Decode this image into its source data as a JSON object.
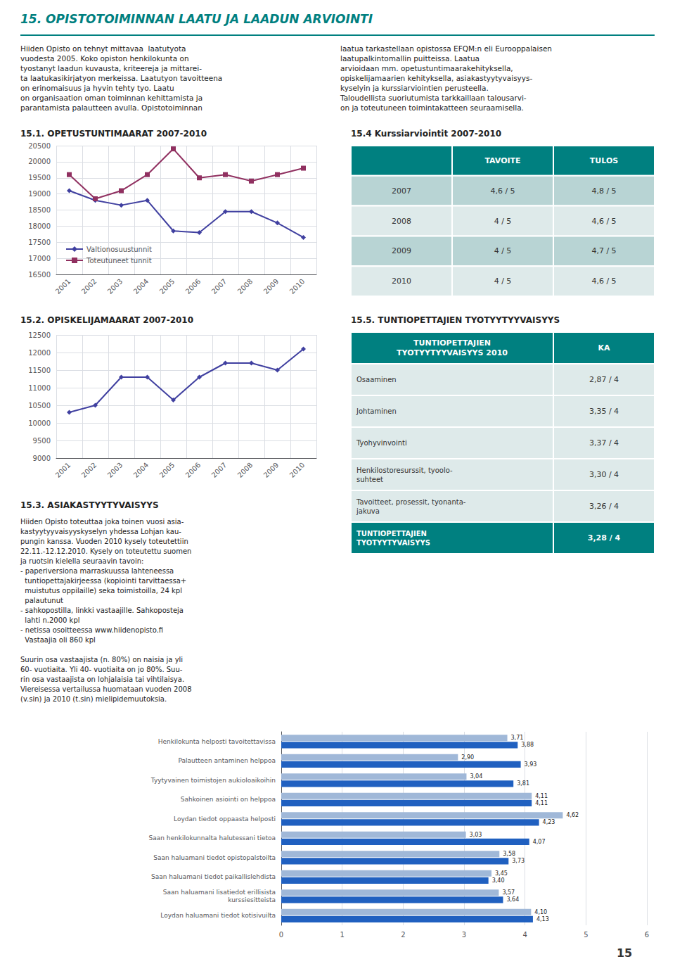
{
  "title": "15. OPISTOTOIMINNAN LAATU JA LAADUN ARVIOINTI",
  "color": "#008080",
  "annotations": [
    "Hiiden Opisto on tehnyt mittavaa  laatutyota\nvuodesta 2005. Koko opiston henkilokunta on\ntyostanyt laadun kuvausta, kriteereja ja mittarei-\nta laatukasikirjatyon merkeissa. Laatutyon tavoitteena\non erinomaisuus ja hyvin tehty tyo. Laatu\non organisaation oman toiminnan kehittamista ja\nparantamista palautteen avulla. Opistotoiminnan",
    "laatua tarkastellaan opistossa EFQM:n eli Eurooppalaisen\nlaatupalkintomallin puitteissa. Laatua\narvioidaan mm. opetustuntimaarakehityksella,\nopiskelijamaarien kehityksella, asiakastyytyvaisyys-\nkyselyin ja kurssiarviointien perusteella.\nTaloudellista suoriutumista tarkkaillaan talousarvi-\non ja toteutuneen toimintakatteen seuraamisella.",
    "15"
  ],
  "chart_data": [
    {
      "type": "line",
      "title": "15.1. OPETUSTUNTIMAARAT 2007-2010",
      "categories": [
        "2001",
        "2002",
        "2003",
        "2004",
        "2005",
        "2006",
        "2007",
        "2008",
        "2009",
        "2010"
      ],
      "series": [
        {
          "name": "Valtionosuustunnit",
          "color": "#4040a0",
          "marker": "diamond",
          "values": [
            19100,
            18800,
            18650,
            18800,
            17850,
            17800,
            18450,
            18450,
            18100,
            17650
          ]
        },
        {
          "name": "Toteutuneet tunnit",
          "color": "#903060",
          "marker": "square",
          "values": [
            19600,
            18850,
            19100,
            19600,
            20400,
            19500,
            19600,
            19400,
            19600,
            19800
          ]
        }
      ],
      "ylim": [
        16500,
        20500
      ],
      "yticks": [
        16500,
        17000,
        17500,
        18000,
        18500,
        19000,
        19500,
        20000,
        20500
      ],
      "grid": true,
      "legend": "lower left"
    },
    {
      "type": "table",
      "title": "15.4 Kurssiarviointit 2007-2010",
      "columns": [
        "TAVOITE",
        "TULOS"
      ],
      "rows": [
        [
          "2007",
          "4,6 / 5",
          "4,8 / 5"
        ],
        [
          "2008",
          "4 / 5",
          "4,6 / 5"
        ],
        [
          "2009",
          "4 / 5",
          "4,7 / 5"
        ],
        [
          "2010",
          "4 / 5",
          "4,6 / 5"
        ]
      ],
      "color": "#008080",
      "colors": [
        "#b8d4d4",
        "#deeaea",
        "#b8d4d4",
        "#deeaea"
      ]
    },
    {
      "type": "line",
      "title": "15.2. OPISKELIJAMAARAT 2007-2010",
      "categories": [
        "2001",
        "2002",
        "2003",
        "2004",
        "2005",
        "2006",
        "2007",
        "2008",
        "2009",
        "2010"
      ],
      "series": [
        {
          "color": "#4040a0",
          "marker": "diamond",
          "values": [
            10300,
            10500,
            11300,
            11300,
            10650,
            11300,
            11700,
            11700,
            11500,
            12100
          ]
        }
      ],
      "ylim": [
        9000,
        12500
      ],
      "yticks": [
        9000,
        9500,
        10000,
        10500,
        11000,
        11500,
        12000,
        12500
      ],
      "grid": true
    },
    {
      "type": "table",
      "title": "15.5. TUNTIOPETTAJIEN TYOTYYTYYVAISYYS",
      "columns": [
        "TUNTIOPETTAJIEN\nTYOTYYTYYVAISYYS 2010",
        "KA"
      ],
      "rows": [
        [
          "Osaaminen",
          "2,87 / 4"
        ],
        [
          "Johtaminen",
          "3,35 / 4"
        ],
        [
          "Tyohyvinvointi",
          "3,37 / 4"
        ],
        [
          "Henkilostoresurssit, tyoolo-\nsuhteet",
          "3,30 / 4"
        ],
        [
          "Tavoitteet, prosessit, tyonanta-\njakuva",
          "3,26 / 4"
        ],
        [
          "TUNTIOPETTAJIEN\nTYOTYYTYVAISYYS",
          "3,28 / 4"
        ]
      ],
      "color": "#008080",
      "colors": [
        "#deeaea",
        "#deeaea",
        "#deeaea",
        "#deeaea",
        "#deeaea",
        "#008080"
      ]
    },
    {
      "type": "bar",
      "orientation": "horizontal",
      "title": "15.3. ASIAKASTYYTYVAISYYS",
      "annotations": [
        "Hiiden Opisto toteuttaa joka toinen vuosi asia-\nkastyytyyvaisyyskyselyn yhdessa Lohjan kau-\npungin kanssa. Vuoden 2010 kysely toteutettiin\n22.11.-12.12.2010. Kysely on toteutettu suomen\nja ruotsin kielella seuraavin tavoin:\n- paperiversiona marraskuussa lahteneessa\n  tuntiopettajakirjeessa (kopiointi tarvittaessa+\n  muistutus oppilaille) seka toimistoilla, 24 kpl\n  palautunut\n- sahkopostilla, linkki vastaajille. Sahkoposteja\n  lahti n.2000 kpl\n- netissa osoitteessa www.hiidenopisto.fi\n  Vastaajia oli 860 kpl\n\nSuurin osa vastaajista (n. 80%) on naisia ja yli\n60- vuotiaita. Yli 40- vuotiaita on jo 80%. Suu-\nrin osa vastaajista on lohjalaisia tai vihtilaisya.\nViereisessa vertailussa huomataan vuoden 2008\n(v.sin) ja 2010 (t.sin) mielipidemuutoksia."
      ],
      "categories": [
        "Henkilokunta helposti tavoitettavissa",
        "Palautteen antaminen helppoa",
        "Tyytyvainen toimistojen aukioloaikoihin",
        "Sahkoinen asiointi on helppoa",
        "Loydan tiedot oppaasta helposti",
        "Saan henkilokunnalta halutessani tietoa",
        "Saan haluamani tiedot opistopalstoilta",
        "Saan haluamani tiedot paikallislehdista",
        "Saan haluamani lisatiedot erillisista\nkurssiesitteista",
        "Loydan haluamani tiedot kotisivuilta"
      ],
      "series": [
        {
          "color": "#a0b8d8",
          "values": [
            3.71,
            2.9,
            3.04,
            4.11,
            4.62,
            3.03,
            3.58,
            3.45,
            3.57,
            4.1
          ],
          "value_labels": [
            "3,71",
            "2,90",
            "3,04",
            "4,11",
            "4,62",
            "3,03",
            "3,58",
            "3,45",
            "3,57",
            "4,10"
          ]
        },
        {
          "color": "#2060c0",
          "values": [
            3.88,
            3.93,
            3.81,
            4.11,
            4.23,
            4.07,
            3.73,
            3.4,
            3.64,
            4.13
          ],
          "value_labels": [
            "3,88",
            "3,93",
            "3,81",
            "4,11",
            "4,23",
            "4,07",
            "3,73",
            "3,40",
            "3,64",
            "4,13"
          ]
        }
      ],
      "xlim": [
        0,
        6
      ],
      "xticks": [
        0,
        1,
        2,
        3,
        4,
        5,
        6
      ],
      "grid": "x",
      "data_labels": true
    }
  ]
}
